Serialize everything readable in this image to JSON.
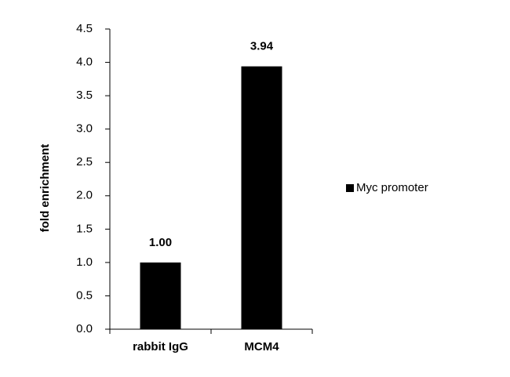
{
  "chart_data": {
    "type": "bar",
    "y_label": "fold enrichment",
    "categories": [
      "rabbit IgG",
      "MCM4"
    ],
    "series": [
      {
        "name": "Myc promoter",
        "color": "#000000",
        "values": [
          1,
          3.94
        ],
        "value_labels": [
          "1.00",
          "3.94"
        ]
      }
    ],
    "ylim": [
      0,
      4.5
    ],
    "yticks": [
      {
        "value": 0,
        "label": "0.0"
      },
      0.5,
      {
        "value": 1,
        "label": "1.0"
      },
      1.5,
      {
        "value": 2,
        "label": "2.0"
      },
      2.5,
      {
        "value": 3,
        "label": "3.0"
      },
      3.5,
      {
        "value": 4,
        "label": "4.0"
      },
      4.5
    ],
    "legend": "right",
    "grid": false
  }
}
